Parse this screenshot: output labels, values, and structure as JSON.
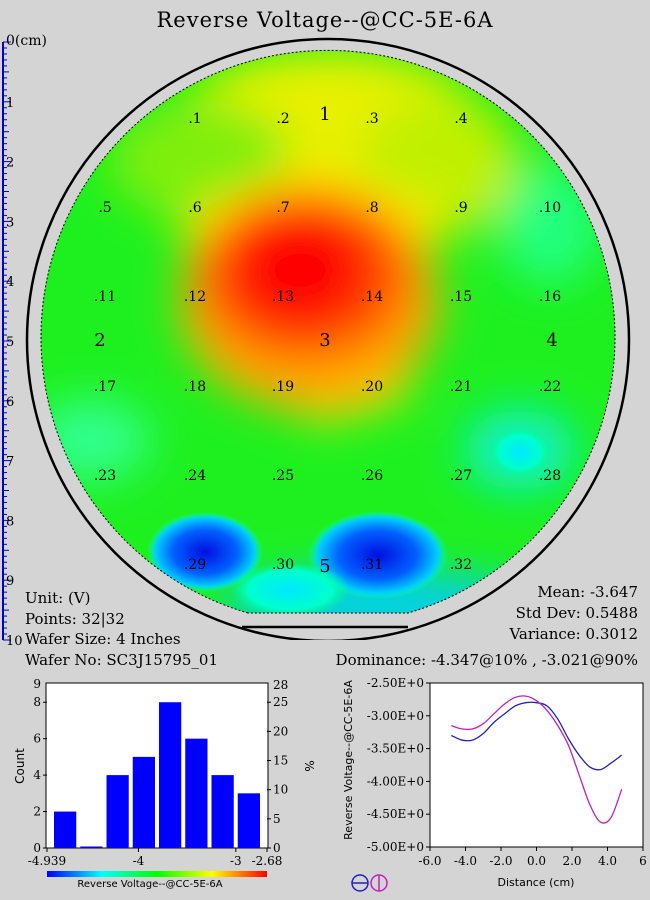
{
  "title": "Reverse Voltage--@CC-5E-6A",
  "ruler": {
    "unit_label": "0(cm)",
    "labels": [
      "1",
      "2",
      "3",
      "4",
      "5",
      "6",
      "7",
      "8",
      "9",
      "10"
    ]
  },
  "info_left": {
    "unit": "Unit: (V)",
    "points": "Points: 32|32",
    "wafer_size": "Wafer Size: 4 Inches",
    "wafer_no": "Wafer No: SC3J15795_01"
  },
  "info_right": {
    "mean": "Mean: -3.647",
    "std_dev": "Std Dev: 0.5488",
    "variance": "Variance: 0.3012",
    "dominance": "Dominance: -4.347@10% , -3.021@90%"
  },
  "colors": {
    "background": "#d4d4d4",
    "histogram_bar": "#0000ff",
    "line_blue": "#2020c0",
    "line_magenta": "#c020c0"
  },
  "icons": [
    "circle-minus-icon",
    "circle-vertical-icon"
  ],
  "chart_data": [
    {
      "type": "heatmap",
      "name": "wafer-map",
      "site_labels": [
        ".1",
        ".2",
        ".3",
        ".4",
        ".5",
        ".6",
        ".7",
        ".8",
        ".9",
        ".10",
        ".11",
        ".12",
        ".13",
        ".14",
        ".15",
        ".16",
        ".17",
        ".18",
        ".19",
        ".20",
        ".21",
        ".22",
        ".23",
        ".24",
        ".25",
        ".26",
        ".27",
        ".28",
        ".29",
        ".30",
        ".31",
        ".32"
      ],
      "region_labels": [
        "1",
        "2",
        "3",
        "4",
        "5"
      ],
      "colorscale": [
        "#0000ff",
        "#00ffff",
        "#00ff00",
        "#ffff00",
        "#ff0000"
      ]
    },
    {
      "type": "bar",
      "name": "histogram",
      "values": [
        2,
        0,
        4,
        5,
        8,
        6,
        4,
        3
      ],
      "ylabel": "Count",
      "y2label": "%",
      "ylim": [
        0,
        9
      ],
      "y_ticks": [
        "0",
        "2",
        "4",
        "6",
        "8"
      ],
      "y_top_tick": "9",
      "y2_ticks": [
        "0",
        "5",
        "10",
        "15",
        "20",
        "25"
      ],
      "y2_top_tick": "28",
      "x_ticks": [
        "-4.939",
        "-4",
        "-3",
        "-2.68"
      ],
      "xlim": [
        -4.939,
        -2.68
      ],
      "colorbar_label": "Reverse Voltage--@CC-5E-6A"
    },
    {
      "type": "line",
      "name": "profile",
      "xlabel": "Distance (cm)",
      "ylabel": "Reverse Voltage--@CC-5E-6A",
      "xlim": [
        -6,
        6
      ],
      "ylim": [
        -5,
        -2.5
      ],
      "x_ticks": [
        "-6.0",
        "-4.0",
        "-2.0",
        "0.0",
        "2.0",
        "4.0",
        "6"
      ],
      "y_ticks": [
        "-2.50E+0",
        "-3.00E+0",
        "-3.50E+0",
        "-4.00E+0",
        "-4.50E+0",
        "-5.00E+0"
      ],
      "series": [
        {
          "x": [
            -4.8,
            -4.2,
            -3.6,
            -3,
            -2.4,
            -1.8,
            -1.2,
            -0.6,
            0,
            0.6,
            1.2,
            1.8,
            2.4,
            3,
            3.6,
            4.2,
            4.8
          ],
          "y": [
            -3.3,
            -3.37,
            -3.37,
            -3.27,
            -3.1,
            -2.97,
            -2.85,
            -2.8,
            -2.8,
            -2.85,
            -3.05,
            -3.35,
            -3.6,
            -3.78,
            -3.82,
            -3.72,
            -3.6
          ]
        },
        {
          "x": [
            -4.8,
            -4.2,
            -3.6,
            -3,
            -2.4,
            -1.8,
            -1.2,
            -0.6,
            0,
            0.6,
            1.2,
            1.8,
            2.4,
            3,
            3.6,
            4.2,
            4.8
          ],
          "y": [
            -3.15,
            -3.2,
            -3.2,
            -3.12,
            -2.97,
            -2.82,
            -2.72,
            -2.7,
            -2.77,
            -2.92,
            -3.15,
            -3.45,
            -3.9,
            -4.35,
            -4.62,
            -4.55,
            -4.12
          ]
        }
      ]
    }
  ]
}
